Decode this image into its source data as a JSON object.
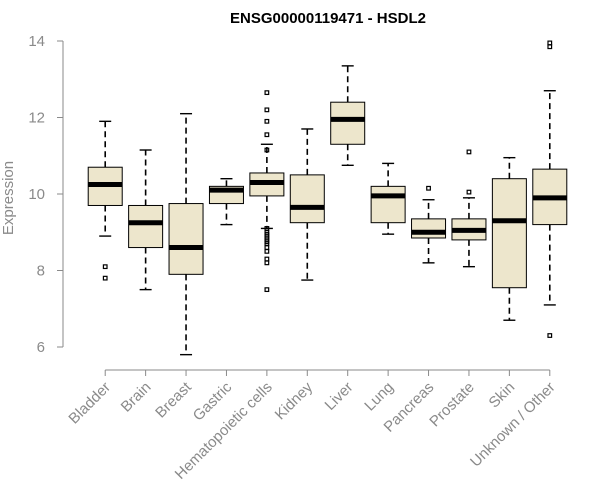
{
  "chart_data": {
    "type": "boxplot",
    "title": "ENSG00000119471 - HSDL2",
    "xlabel": "",
    "ylabel": "Expression",
    "ylim": [
      5.6,
      14.3
    ],
    "yticks": [
      6,
      8,
      10,
      12,
      14
    ],
    "box_color": "#ede6cc",
    "categories": [
      "Bladder",
      "Brain",
      "Breast",
      "Gastric",
      "Hematopoietic cells",
      "Kidney",
      "Liver",
      "Lung",
      "Pancreas",
      "Prostate",
      "Skin",
      "Unknown / Other"
    ],
    "boxes": [
      {
        "category": "Bladder",
        "whisker_low": 8.9,
        "q1": 9.7,
        "median": 10.25,
        "q3": 10.7,
        "whisker_high": 11.9,
        "outliers": [
          8.1,
          7.8
        ]
      },
      {
        "category": "Brain",
        "whisker_low": 7.5,
        "q1": 8.6,
        "median": 9.25,
        "q3": 9.7,
        "whisker_high": 11.15,
        "outliers": []
      },
      {
        "category": "Breast",
        "whisker_low": 5.8,
        "q1": 7.9,
        "median": 8.6,
        "q3": 9.75,
        "whisker_high": 12.1,
        "outliers": []
      },
      {
        "category": "Gastric",
        "whisker_low": 9.2,
        "q1": 9.75,
        "median": 10.1,
        "q3": 10.2,
        "whisker_high": 10.4,
        "outliers": []
      },
      {
        "category": "Hematopoietic cells",
        "whisker_low": 9.1,
        "q1": 9.95,
        "median": 10.3,
        "q3": 10.55,
        "whisker_high": 11.3,
        "outliers": [
          12.65,
          12.2,
          11.9,
          11.55,
          11.15,
          9.1,
          9.0,
          8.95,
          8.9,
          8.85,
          8.8,
          8.75,
          8.7,
          8.6,
          8.5,
          8.3,
          8.2,
          7.5
        ]
      },
      {
        "category": "Kidney",
        "whisker_low": 7.75,
        "q1": 9.25,
        "median": 9.65,
        "q3": 10.5,
        "whisker_high": 11.7,
        "outliers": []
      },
      {
        "category": "Liver",
        "whisker_low": 10.75,
        "q1": 11.3,
        "median": 11.95,
        "q3": 12.4,
        "whisker_high": 13.35,
        "outliers": []
      },
      {
        "category": "Lung",
        "whisker_low": 8.95,
        "q1": 9.25,
        "median": 9.95,
        "q3": 10.2,
        "whisker_high": 10.8,
        "outliers": []
      },
      {
        "category": "Pancreas",
        "whisker_low": 8.2,
        "q1": 8.85,
        "median": 9.0,
        "q3": 9.35,
        "whisker_high": 9.85,
        "outliers": [
          10.15
        ]
      },
      {
        "category": "Prostate",
        "whisker_low": 8.1,
        "q1": 8.8,
        "median": 9.05,
        "q3": 9.35,
        "whisker_high": 9.9,
        "outliers": [
          11.1,
          10.05
        ]
      },
      {
        "category": "Skin",
        "whisker_low": 6.7,
        "q1": 7.55,
        "median": 9.3,
        "q3": 10.4,
        "whisker_high": 10.95,
        "outliers": []
      },
      {
        "category": "Unknown / Other",
        "whisker_low": 7.1,
        "q1": 9.2,
        "median": 9.9,
        "q3": 10.65,
        "whisker_high": 12.7,
        "outliers": [
          13.95,
          13.85,
          6.3
        ]
      }
    ]
  }
}
